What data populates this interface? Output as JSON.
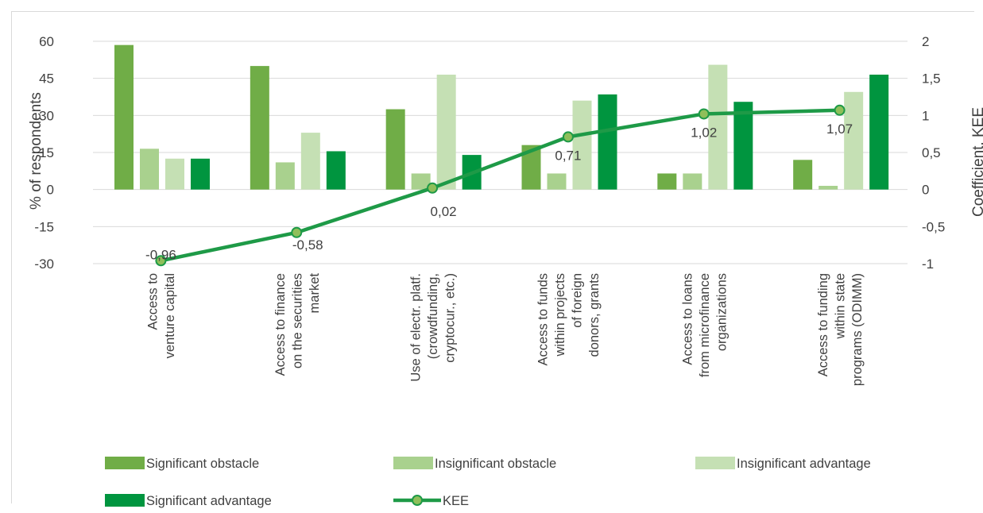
{
  "chart_data": {
    "type": "bar",
    "categories": [
      [
        "Access to",
        "venture capital"
      ],
      [
        "Access to finance",
        "on the securities",
        "market"
      ],
      [
        "Use of electr. platf.",
        "(crowdfunding,",
        "cryptocur., etc.)"
      ],
      [
        "Access to funds",
        "within projects",
        "of foreign",
        "donors, grants"
      ],
      [
        "Access to loans",
        "from microfinance",
        "organizations"
      ],
      [
        "Access to funding",
        "within state",
        "programs (ODIMM)"
      ]
    ],
    "series": [
      {
        "name": "Significant obstacle",
        "color": "#70ad47",
        "values": [
          58.5,
          50,
          32.5,
          18,
          6.5,
          12
        ]
      },
      {
        "name": "Insignificant obstacle",
        "color": "#a9d18e",
        "values": [
          16.5,
          11,
          6.5,
          6.5,
          6.5,
          1.5
        ]
      },
      {
        "name": "Insignificant advantage",
        "color": "#c5e0b4",
        "values": [
          12.5,
          23,
          46.5,
          36,
          50.5,
          39.5
        ]
      },
      {
        "name": "Significant advantage",
        "color": "#00953f",
        "values": [
          12.5,
          15.5,
          14,
          38.5,
          35.5,
          46.5
        ]
      }
    ],
    "line": {
      "name": "KEE",
      "color": "#1e9a47",
      "marker_fill": "#8fbf5a",
      "values": [
        -0.96,
        -0.58,
        0.02,
        0.71,
        1.02,
        1.07
      ],
      "labels": [
        "-0,96",
        "-0,58",
        "0,02",
        "0,71",
        "1,02",
        "1,07"
      ]
    },
    "ylabel": "% of respondents",
    "y2label": "Coefficient. KEE",
    "ylim": [
      -30,
      60
    ],
    "y2lim": [
      -1,
      2
    ],
    "yticks": [
      60,
      45,
      30,
      15,
      0,
      -15,
      -30
    ],
    "ytick_labels": [
      "60",
      "45",
      "30",
      "15",
      "0",
      "-15",
      "-30"
    ],
    "y2ticks": [
      2,
      1.5,
      1,
      0.5,
      0,
      -0.5,
      -1
    ],
    "y2tick_labels": [
      "2",
      "1,5",
      "1",
      "0,5",
      "0",
      "-0,5",
      "-1"
    ],
    "legend_position": "bottom",
    "grid": true
  }
}
